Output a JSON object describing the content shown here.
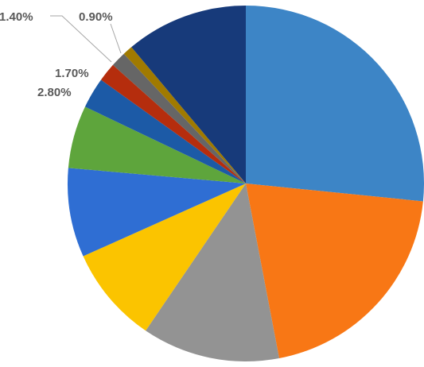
{
  "chart_data": {
    "type": "pie",
    "title": "",
    "start_angle_deg": 0,
    "direction": "clockwise",
    "slices": [
      {
        "value": 26.6,
        "color": "#3d85c6",
        "label": ""
      },
      {
        "value": 20.4,
        "color": "#f87715",
        "label": ""
      },
      {
        "value": 12.5,
        "color": "#939393",
        "label": ""
      },
      {
        "value": 8.8,
        "color": "#fbc400",
        "label": ""
      },
      {
        "value": 8.1,
        "color": "#2f6ed3",
        "label": ""
      },
      {
        "value": 5.7,
        "color": "#5ea53c",
        "label": ""
      },
      {
        "value": 2.8,
        "color": "#1c5aa6",
        "label": "2.80%"
      },
      {
        "value": 1.7,
        "color": "#b52d0d",
        "label": "1.70%"
      },
      {
        "value": 1.4,
        "color": "#666666",
        "label": "1.40%"
      },
      {
        "value": 0.9,
        "color": "#a07a00",
        "label": "0.90%"
      },
      {
        "value": 11.1,
        "color": "#173a7a",
        "label": ""
      }
    ]
  }
}
